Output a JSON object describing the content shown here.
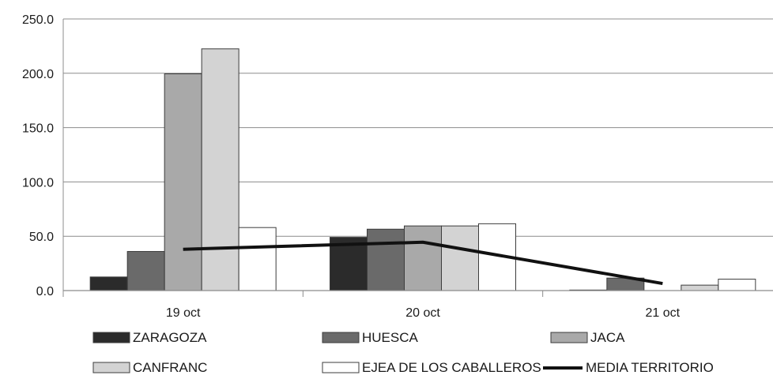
{
  "chart_data": {
    "type": "bar",
    "title": "",
    "xlabel": "",
    "ylabel": "",
    "ylim": [
      0,
      250
    ],
    "yticks": [
      "0.0",
      "50.0",
      "100.0",
      "150.0",
      "200.0",
      "250.0"
    ],
    "grid": true,
    "legend_position": "bottom",
    "categories": [
      "19 oct",
      "20 oct",
      "21 oct"
    ],
    "series": [
      {
        "name": "ZARAGOZA",
        "type": "bar",
        "color": "#2b2b2b",
        "values": [
          12.5,
          49,
          0.5
        ]
      },
      {
        "name": "HUESCA",
        "type": "bar",
        "color": "#6a6a6a",
        "values": [
          36,
          56.5,
          11.5
        ]
      },
      {
        "name": "JACA",
        "type": "bar",
        "color": "#a9a9a9",
        "values": [
          199.5,
          59.5,
          0
        ]
      },
      {
        "name": "CANFRANC",
        "type": "bar",
        "color": "#d3d3d3",
        "values": [
          222.5,
          59.5,
          5
        ]
      },
      {
        "name": "EJEA DE LOS CABALLEROS",
        "type": "bar",
        "color": "#ffffff",
        "values": [
          58,
          61.5,
          10.5
        ]
      },
      {
        "name": "MEDIA TERRITORIO",
        "type": "line",
        "color": "#111111",
        "values": [
          38,
          44.5,
          6.5
        ]
      }
    ]
  }
}
